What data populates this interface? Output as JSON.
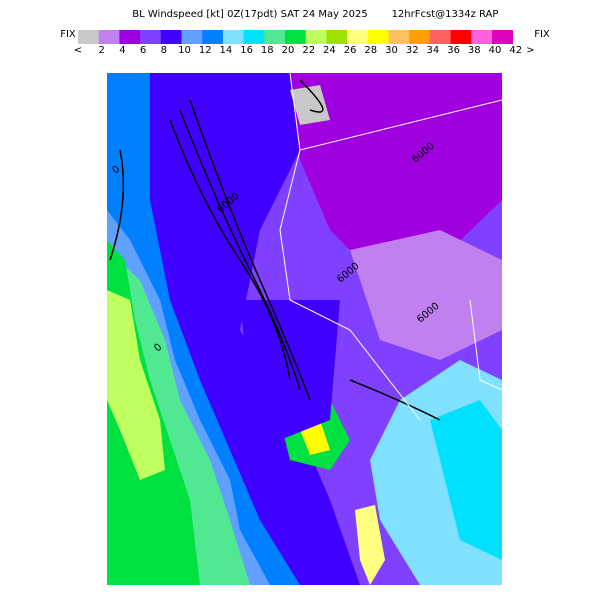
{
  "header": {
    "title": "BL Windspeed [kt] 0Z(17pdt) SAT 24 May 2025",
    "subtitle": "12hrFcst@1334z RAP",
    "fix_left": "FIX",
    "fix_right": "FIX"
  },
  "colorbar": {
    "under": "<",
    "over": ">",
    "levels": [
      2,
      4,
      6,
      8,
      10,
      12,
      14,
      16,
      18,
      20,
      22,
      24,
      26,
      28,
      30,
      32,
      34,
      36,
      38,
      40,
      42
    ],
    "colors": [
      "#c8c8c8",
      "#c080f0",
      "#a000e0",
      "#8040ff",
      "#4000ff",
      "#60a0ff",
      "#0080ff",
      "#80e0ff",
      "#00e0ff",
      "#50e890",
      "#00e040",
      "#c0ff60",
      "#a0e000",
      "#ffff80",
      "#ffff00",
      "#ffc060",
      "#ffa000",
      "#ff6060",
      "#ff0000",
      "#ff60e0",
      "#e000c0"
    ]
  },
  "map": {
    "contour_labels": [
      "6000",
      "6000",
      "6000",
      "6000",
      "0",
      "0"
    ]
  }
}
